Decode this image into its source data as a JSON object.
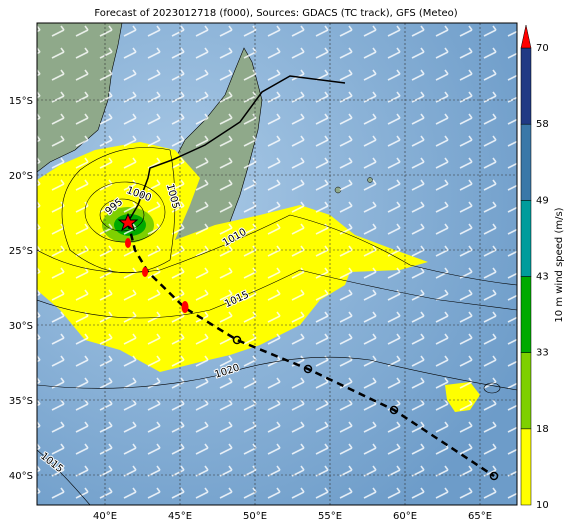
{
  "title": "Forecast of 2023012718 (f000), Sources: GDACS (TC track), GFS (Meteo)",
  "lat_labels": [
    "15°S",
    "20°S",
    "25°S",
    "30°S",
    "35°S",
    "40°S"
  ],
  "lon_labels": [
    "40°E",
    "45°E",
    "50°E",
    "55°E",
    "60°E",
    "65°E"
  ],
  "colorbar": {
    "label": "10 m wind speed (m/s)",
    "ticks": [
      10,
      18,
      33,
      43,
      49,
      58,
      70
    ]
  },
  "isobar_labels": [
    "995",
    "1000",
    "1005",
    "1010",
    "1015",
    "1020",
    "1015"
  ]
}
